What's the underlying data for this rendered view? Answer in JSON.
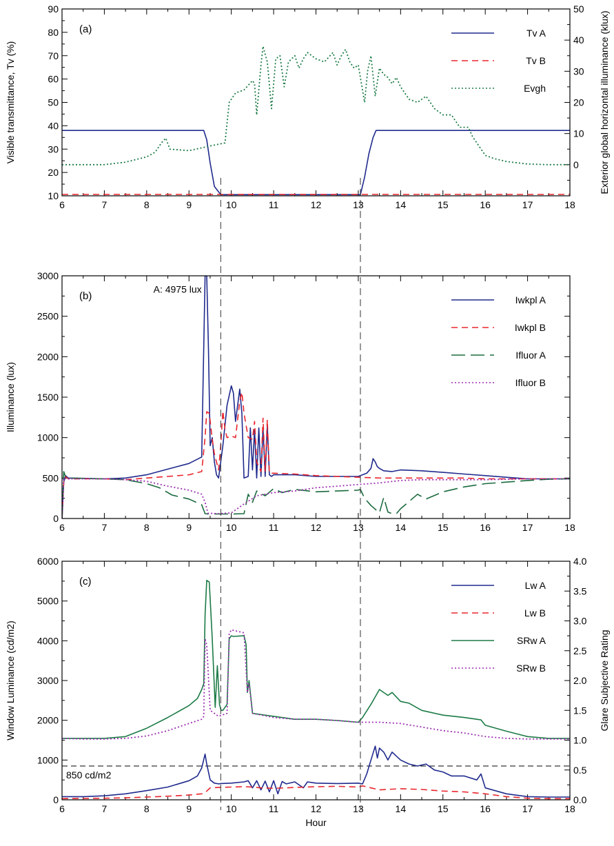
{
  "colors": {
    "navy": "#1f2a8c",
    "red": "#e8262d",
    "green": "#1b7a45",
    "dark_green": "#1a6a3e",
    "purple": "#9b2fb0",
    "dashed_ref": "#333333"
  },
  "x_axis_label": "Hour",
  "vertical_markers": [
    9.75,
    13.05
  ],
  "chart_data": [
    {
      "id": "a",
      "type": "line",
      "panel_label": "(a)",
      "xlabel": "",
      "xlim": [
        6,
        18
      ],
      "xticks": [
        6,
        7,
        8,
        9,
        10,
        11,
        12,
        13,
        14,
        15,
        16,
        17,
        18
      ],
      "ylabel": "Visible transmittance, Tv (%)",
      "ylim": [
        10,
        90
      ],
      "yticks": [
        10,
        20,
        30,
        40,
        50,
        60,
        70,
        80,
        90
      ],
      "y2label": "Exterior global horizontal illuminance (klux)",
      "y2lim": [
        -10,
        50
      ],
      "y2ticks": [
        0,
        10,
        20,
        30,
        40,
        50
      ],
      "legend_position": "top-right",
      "series": [
        {
          "name": "Tv A",
          "axis": "left",
          "style": "solid",
          "color": "#1f2a8c",
          "x": [
            6,
            9.35,
            9.42,
            9.5,
            9.6,
            9.75,
            13.05,
            13.15,
            13.25,
            13.35,
            13.42,
            18
          ],
          "y": [
            38,
            38,
            34,
            24,
            14,
            10.5,
            10.5,
            18,
            28,
            35,
            38,
            38
          ]
        },
        {
          "name": "Tv B",
          "axis": "left",
          "style": "dashed",
          "color": "#e8262d",
          "x": [
            6,
            18
          ],
          "y": [
            10.6,
            10.6
          ]
        },
        {
          "name": "Evgh",
          "axis": "right",
          "style": "dotted",
          "color": "#1b7a45",
          "x": [
            6,
            7,
            7.5,
            8,
            8.2,
            8.35,
            8.45,
            8.55,
            9,
            9.5,
            9.85,
            9.95,
            10.1,
            10.3,
            10.5,
            10.55,
            10.6,
            10.7,
            10.75,
            10.85,
            10.95,
            11.05,
            11.15,
            11.25,
            11.35,
            11.5,
            11.6,
            11.7,
            11.8,
            12,
            12.2,
            12.4,
            12.5,
            12.6,
            12.7,
            12.8,
            12.9,
            13.0,
            13.15,
            13.22,
            13.3,
            13.4,
            13.5,
            13.6,
            13.7,
            13.8,
            13.9,
            14.0,
            14.2,
            14.4,
            14.6,
            14.8,
            15.0,
            15.2,
            15.4,
            15.6,
            15.7,
            15.8,
            16.0,
            16.2,
            16.5,
            17,
            17.5,
            18
          ],
          "y": [
            0,
            0,
            0.8,
            2.5,
            4,
            7,
            8.5,
            5,
            4.5,
            6,
            7,
            20,
            23,
            24,
            27,
            26,
            16,
            32,
            38,
            33,
            18,
            34,
            35,
            25,
            33,
            35,
            31,
            34,
            36,
            34,
            33,
            36,
            32,
            35,
            37,
            33,
            31,
            32,
            20,
            30,
            35,
            22,
            31,
            29,
            28,
            26,
            28,
            25,
            21,
            20,
            22,
            18,
            16,
            16,
            12,
            12,
            9,
            7,
            3,
            2,
            1,
            0.2,
            0,
            0
          ]
        }
      ],
      "annotations": []
    },
    {
      "id": "b",
      "type": "line",
      "panel_label": "(b)",
      "xlabel": "",
      "xlim": [
        6,
        18
      ],
      "xticks": [
        6,
        7,
        8,
        9,
        10,
        11,
        12,
        13,
        14,
        15,
        16,
        17,
        18
      ],
      "ylabel": "Illuminance (lux)",
      "ylim": [
        0,
        3000
      ],
      "yticks": [
        0,
        500,
        1000,
        1500,
        2000,
        2500,
        3000
      ],
      "legend_position": "top-right",
      "series": [
        {
          "name": "Iwkpl A",
          "axis": "left",
          "style": "solid",
          "color": "#1f2a8c",
          "x": [
            6,
            6.04,
            6.08,
            6.15,
            7,
            7.5,
            8,
            8.5,
            9,
            9.3,
            9.38,
            9.42,
            9.46,
            9.5,
            9.55,
            9.6,
            9.65,
            9.7,
            9.8,
            9.9,
            10,
            10.05,
            10.1,
            10.2,
            10.25,
            10.3,
            10.4,
            10.45,
            10.5,
            10.55,
            10.6,
            10.65,
            10.7,
            10.75,
            10.8,
            10.85,
            10.9,
            10.95,
            11,
            11.5,
            12,
            12.5,
            13,
            13.2,
            13.3,
            13.35,
            13.4,
            13.45,
            13.5,
            13.6,
            13.8,
            14,
            14.5,
            15,
            15.5,
            16,
            16.5,
            17,
            17.5,
            18
          ],
          "y": [
            0,
            450,
            530,
            500,
            490,
            500,
            540,
            610,
            680,
            760,
            3000,
            3000,
            2100,
            900,
            1000,
            700,
            540,
            500,
            900,
            1400,
            1640,
            1550,
            1200,
            1600,
            1300,
            500,
            520,
            1120,
            600,
            1100,
            500,
            1120,
            520,
            1120,
            520,
            1150,
            540,
            520,
            540,
            540,
            520,
            520,
            520,
            560,
            620,
            740,
            700,
            640,
            620,
            590,
            580,
            600,
            590,
            570,
            550,
            530,
            510,
            490,
            490,
            490
          ]
        },
        {
          "name": "Iwkpl B",
          "axis": "left",
          "style": "dashed",
          "color": "#e8262d",
          "x": [
            6,
            6.04,
            6.08,
            6.15,
            7,
            7.5,
            8,
            8.5,
            9,
            9.3,
            9.38,
            9.42,
            9.48,
            9.55,
            9.6,
            9.7,
            9.75,
            9.8,
            9.85,
            9.9,
            10,
            10.1,
            10.2,
            10.25,
            10.3,
            10.4,
            10.5,
            10.55,
            10.6,
            10.7,
            10.75,
            10.8,
            10.85,
            10.9,
            11,
            11.5,
            12,
            12.5,
            13,
            13.5,
            14,
            14.5,
            15,
            15.5,
            16,
            16.5,
            17,
            17.5,
            18
          ],
          "y": [
            0,
            450,
            520,
            490,
            490,
            480,
            500,
            520,
            540,
            580,
            1000,
            1320,
            1300,
            980,
            800,
            600,
            900,
            1330,
            1100,
            1000,
            1020,
            1000,
            1450,
            1560,
            1300,
            1000,
            980,
            1200,
            700,
            580,
            1240,
            580,
            1220,
            560,
            560,
            550,
            530,
            520,
            510,
            500,
            500,
            500,
            500,
            500,
            490,
            490,
            490,
            490,
            490
          ]
        },
        {
          "name": "Ifluor A",
          "axis": "left",
          "style": "longdash",
          "color": "#1a6a3e",
          "x": [
            6,
            6.04,
            6.08,
            6.15,
            7,
            7.5,
            8,
            8.3,
            8.6,
            9,
            9.3,
            9.38,
            9.45,
            9.7,
            9.75,
            10,
            10.3,
            10.4,
            10.5,
            10.6,
            10.8,
            11,
            11.2,
            11.5,
            12,
            12.5,
            13,
            13.05,
            13.15,
            13.3,
            13.5,
            13.6,
            13.7,
            13.8,
            13.9,
            14.0,
            14.2,
            14.4,
            14.6,
            15,
            15.5,
            16,
            16.5,
            17,
            17.5,
            18
          ],
          "y": [
            0,
            580,
            520,
            500,
            490,
            480,
            430,
            380,
            290,
            240,
            170,
            60,
            55,
            55,
            55,
            55,
            60,
            300,
            200,
            340,
            280,
            370,
            320,
            360,
            330,
            340,
            350,
            360,
            250,
            160,
            70,
            260,
            80,
            60,
            60,
            120,
            210,
            300,
            240,
            330,
            390,
            430,
            450,
            470,
            485,
            490
          ]
        },
        {
          "name": "Ifluor B",
          "axis": "left",
          "style": "dotted",
          "color": "#9b2fb0",
          "x": [
            6,
            6.04,
            6.08,
            6.15,
            7,
            7.5,
            8,
            8.5,
            9,
            9.3,
            9.38,
            9.45,
            9.7,
            10,
            10.3,
            10.6,
            11,
            11.5,
            12,
            12.5,
            13,
            13.5,
            14,
            14.5,
            15,
            15.5,
            16,
            16.5,
            17,
            17.5,
            18
          ],
          "y": [
            0,
            500,
            490,
            490,
            490,
            480,
            460,
            400,
            350,
            300,
            200,
            65,
            60,
            70,
            180,
            280,
            320,
            340,
            380,
            400,
            420,
            440,
            470,
            480,
            480,
            480,
            480,
            485,
            490,
            490,
            490
          ]
        }
      ],
      "annotations": [
        {
          "text": "A: 4975 lux",
          "x": 9.3,
          "y": 2900
        }
      ]
    },
    {
      "id": "c",
      "type": "line",
      "panel_label": "(c)",
      "xlabel": "Hour",
      "xlim": [
        6,
        18
      ],
      "xticks": [
        6,
        7,
        8,
        9,
        10,
        11,
        12,
        13,
        14,
        15,
        16,
        17,
        18
      ],
      "ylabel": "Window Luminance (cd/m2)",
      "ylim": [
        0,
        6000
      ],
      "yticks": [
        0,
        1000,
        2000,
        3000,
        4000,
        5000,
        6000
      ],
      "y2label": "Glare Subjective Rating",
      "y2lim": [
        0,
        4.0
      ],
      "y2ticks": [
        "0.0",
        "0.5",
        "1.0",
        "1.5",
        "2.0",
        "2.5",
        "3.0",
        "3.5",
        "4.0"
      ],
      "legend_position": "top-right",
      "reference_lines": [
        {
          "y": 850,
          "label": "850 cd/m2"
        }
      ],
      "series": [
        {
          "name": "Lw A",
          "axis": "left",
          "style": "solid",
          "color": "#1f2a8c",
          "x": [
            6,
            6.5,
            7,
            7.5,
            8,
            8.5,
            9,
            9.2,
            9.3,
            9.38,
            9.42,
            9.5,
            9.6,
            9.7,
            9.75,
            10,
            10.3,
            10.4,
            10.5,
            10.6,
            10.7,
            10.8,
            10.9,
            11,
            11.1,
            11.2,
            11.3,
            11.5,
            11.7,
            11.8,
            12,
            12.5,
            13,
            13.1,
            13.2,
            13.3,
            13.4,
            13.45,
            13.5,
            13.6,
            13.7,
            13.8,
            14,
            14.2,
            14.4,
            14.6,
            14.8,
            15,
            15.2,
            15.5,
            15.8,
            15.9,
            16,
            16.5,
            17,
            17.5,
            18
          ],
          "y": [
            80,
            80,
            100,
            150,
            230,
            320,
            480,
            600,
            800,
            1150,
            900,
            500,
            420,
            400,
            410,
            420,
            450,
            480,
            300,
            480,
            250,
            470,
            200,
            480,
            150,
            460,
            400,
            450,
            300,
            450,
            420,
            410,
            420,
            400,
            650,
            1000,
            1350,
            1050,
            1300,
            1200,
            1000,
            1200,
            1000,
            900,
            850,
            900,
            750,
            700,
            600,
            600,
            500,
            650,
            300,
            150,
            80,
            70,
            70
          ]
        },
        {
          "name": "Lw B",
          "axis": "left",
          "style": "dashed",
          "color": "#e8262d",
          "x": [
            6,
            7,
            7.5,
            8,
            8.5,
            9,
            9.3,
            9.4,
            9.5,
            9.7,
            10,
            10.3,
            10.5,
            10.7,
            11,
            11.5,
            12,
            12.5,
            13,
            13.1,
            13.3,
            13.5,
            14,
            14.5,
            15,
            15.5,
            16,
            16.5,
            17,
            17.5,
            18
          ],
          "y": [
            30,
            40,
            50,
            70,
            90,
            120,
            150,
            200,
            300,
            310,
            320,
            330,
            320,
            300,
            290,
            310,
            330,
            340,
            320,
            350,
            300,
            250,
            280,
            260,
            220,
            200,
            150,
            80,
            40,
            30,
            30
          ]
        },
        {
          "name": "SRw A",
          "axis": "right",
          "style": "solid",
          "color": "#1b7a45",
          "x": [
            6,
            6.5,
            7,
            7.5,
            8,
            8.5,
            9,
            9.2,
            9.3,
            9.35,
            9.38,
            9.42,
            9.48,
            9.55,
            9.62,
            9.67,
            9.72,
            9.76,
            9.8,
            9.9,
            9.95,
            10,
            10.05,
            10.3,
            10.35,
            10.38,
            10.42,
            10.5,
            11,
            11.5,
            12,
            12.5,
            13,
            13.1,
            13.3,
            13.5,
            13.7,
            13.8,
            14,
            14.2,
            14.5,
            15,
            15.5,
            15.9,
            16,
            16.5,
            17,
            17.5,
            18
          ],
          "y": [
            1.03,
            1.03,
            1.03,
            1.06,
            1.2,
            1.38,
            1.58,
            1.7,
            1.85,
            1.95,
            3.1,
            3.68,
            3.65,
            2.7,
            1.55,
            2.25,
            1.6,
            1.5,
            1.5,
            1.6,
            2.7,
            2.75,
            2.74,
            2.75,
            2.6,
            1.8,
            2.0,
            1.45,
            1.4,
            1.35,
            1.35,
            1.33,
            1.3,
            1.38,
            1.6,
            1.85,
            1.75,
            1.8,
            1.65,
            1.62,
            1.5,
            1.42,
            1.38,
            1.34,
            1.25,
            1.15,
            1.06,
            1.03,
            1.03
          ]
        },
        {
          "name": "SRw B",
          "axis": "right",
          "style": "dotted",
          "color": "#9b2fb0",
          "x": [
            6,
            6.5,
            7,
            7.5,
            8,
            8.5,
            9,
            9.3,
            9.35,
            9.38,
            9.42,
            9.5,
            9.7,
            9.9,
            9.95,
            10,
            10.3,
            10.38,
            10.42,
            10.5,
            11,
            11.5,
            12,
            12.5,
            13,
            13.5,
            14,
            14.5,
            15,
            15.5,
            16,
            16.5,
            17,
            17.5,
            18
          ],
          "y": [
            1.03,
            1.02,
            1.02,
            1.03,
            1.07,
            1.16,
            1.28,
            1.35,
            1.4,
            2.7,
            2.6,
            1.5,
            1.4,
            1.45,
            2.78,
            2.85,
            2.8,
            1.8,
            1.95,
            1.45,
            1.38,
            1.35,
            1.35,
            1.33,
            1.3,
            1.3,
            1.28,
            1.22,
            1.16,
            1.12,
            1.06,
            1.03,
            1.02,
            1.02,
            1.02
          ]
        }
      ],
      "annotations": []
    }
  ]
}
